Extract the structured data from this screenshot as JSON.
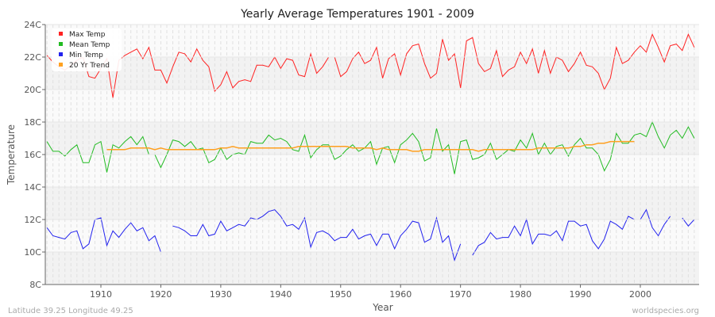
{
  "chart_data": {
    "type": "line",
    "title": "Yearly Average Temperatures 1901 - 2009",
    "xlabel": "Year",
    "ylabel": "Temperature",
    "xlim": [
      1901,
      2009
    ],
    "ylim": [
      8,
      24
    ],
    "yticks": [
      "8C",
      "10C",
      "12C",
      "14C",
      "16C",
      "18C",
      "20C",
      "22C",
      "24C"
    ],
    "ytick_values": [
      8,
      10,
      12,
      14,
      16,
      18,
      20,
      22,
      24
    ],
    "xticks": [
      1910,
      1920,
      1930,
      1940,
      1950,
      1960,
      1970,
      1980,
      1990,
      2000
    ],
    "grid": true,
    "legend_placement": "top-left",
    "x_start": 1901,
    "series": [
      {
        "name": "Max Temp",
        "color": "#ff2222",
        "values": [
          22.1,
          21.7,
          21.4,
          21.2,
          21.5,
          21.8,
          22.0,
          20.8,
          20.7,
          21.3,
          21.9,
          19.5,
          21.8,
          22.1,
          22.3,
          22.5,
          21.9,
          22.6,
          21.2,
          21.2,
          20.4,
          21.4,
          22.3,
          22.2,
          21.7,
          22.5,
          21.8,
          21.4,
          19.9,
          20.3,
          21.1,
          20.1,
          20.5,
          20.6,
          20.5,
          21.5,
          21.5,
          21.4,
          22.0,
          21.3,
          21.9,
          21.8,
          20.9,
          20.8,
          22.2,
          21.0,
          21.4,
          22.0,
          22.0,
          20.8,
          21.1,
          21.9,
          22.3,
          21.6,
          21.8,
          22.6,
          20.7,
          21.9,
          22.2,
          20.9,
          22.2,
          22.7,
          22.8,
          21.6,
          20.7,
          21.0,
          23.1,
          21.8,
          22.2,
          20.1,
          23.0,
          23.2,
          21.6,
          21.1,
          21.3,
          22.4,
          20.8,
          21.2,
          21.4,
          22.3,
          21.6,
          22.5,
          21.0,
          22.4,
          21.0,
          22.0,
          21.8,
          21.1,
          21.6,
          22.3,
          21.5,
          21.4,
          21.0,
          20.0,
          20.7,
          22.6,
          21.6,
          21.8,
          22.3,
          22.7,
          22.3,
          23.4,
          22.6,
          21.7,
          22.7,
          22.8,
          22.4,
          23.4,
          22.6
        ]
      },
      {
        "name": "Mean Temp",
        "color": "#22bb22",
        "values": [
          16.8,
          16.2,
          16.2,
          15.9,
          16.3,
          16.6,
          15.5,
          15.5,
          16.6,
          16.8,
          14.9,
          16.6,
          16.4,
          16.8,
          17.1,
          16.6,
          17.1,
          16.0,
          16.0,
          15.2,
          16.0,
          16.9,
          16.8,
          16.5,
          16.8,
          16.3,
          16.4,
          15.5,
          15.7,
          16.4,
          15.7,
          16.0,
          16.1,
          16.0,
          16.8,
          16.7,
          16.7,
          17.2,
          16.9,
          17.0,
          16.8,
          16.3,
          16.2,
          17.2,
          15.8,
          16.3,
          16.6,
          16.6,
          15.7,
          15.9,
          16.3,
          16.6,
          16.2,
          16.4,
          16.8,
          15.4,
          16.4,
          16.5,
          15.5,
          16.6,
          16.9,
          17.3,
          16.8,
          15.6,
          15.8,
          17.6,
          16.2,
          16.6,
          14.8,
          16.8,
          16.9,
          15.7,
          15.8,
          16.0,
          16.7,
          15.7,
          16.0,
          16.3,
          16.2,
          16.9,
          16.4,
          17.3,
          16.0,
          16.7,
          16.0,
          16.5,
          16.6,
          15.9,
          16.6,
          17.0,
          16.4,
          16.4,
          16.0,
          15.0,
          15.7,
          17.3,
          16.7,
          16.7,
          17.2,
          17.3,
          17.1,
          18.0,
          17.1,
          16.4,
          17.2,
          17.5,
          17.0,
          17.7,
          17.0
        ]
      },
      {
        "name": "Min Temp",
        "color": "#2222ee",
        "values": [
          11.5,
          11.0,
          10.9,
          10.8,
          11.2,
          11.3,
          10.2,
          10.5,
          12.0,
          12.1,
          10.4,
          11.3,
          10.9,
          11.4,
          11.8,
          11.3,
          11.5,
          10.7,
          11.0,
          10.0,
          null,
          11.6,
          11.5,
          11.3,
          11.0,
          11.0,
          11.7,
          11.0,
          11.1,
          11.9,
          11.3,
          11.5,
          11.7,
          11.6,
          12.1,
          12.0,
          12.2,
          12.5,
          12.6,
          12.2,
          11.6,
          11.7,
          11.4,
          12.1,
          10.3,
          11.2,
          11.3,
          11.1,
          10.7,
          10.9,
          10.9,
          11.4,
          10.8,
          11.0,
          11.1,
          10.4,
          11.1,
          11.1,
          10.2,
          11.0,
          11.4,
          11.9,
          11.8,
          10.6,
          10.8,
          12.1,
          10.6,
          11.0,
          9.5,
          10.5,
          null,
          9.8,
          10.4,
          10.6,
          11.2,
          10.8,
          10.9,
          10.9,
          11.6,
          11.0,
          12.0,
          10.5,
          11.1,
          11.1,
          11.0,
          11.3,
          10.7,
          11.9,
          11.9,
          11.6,
          11.7,
          10.7,
          10.2,
          10.8,
          11.9,
          11.7,
          11.4,
          12.2,
          12.0,
          12.0,
          12.6,
          11.5,
          11.0,
          11.7,
          12.2,
          null,
          12.1,
          11.6,
          12.0
        ]
      },
      {
        "name": "20 Yr Trend",
        "color": "#ffa020",
        "x_start": 1911,
        "values": [
          16.3,
          16.3,
          16.3,
          16.3,
          16.4,
          16.4,
          16.4,
          16.4,
          16.3,
          16.4,
          16.3,
          16.3,
          16.3,
          16.3,
          16.3,
          16.3,
          16.3,
          16.3,
          16.3,
          16.4,
          16.4,
          16.5,
          16.4,
          16.4,
          16.4,
          16.4,
          16.4,
          16.4,
          16.4,
          16.4,
          16.4,
          16.4,
          16.5,
          16.5,
          16.5,
          16.5,
          16.5,
          16.5,
          16.5,
          16.5,
          16.5,
          16.4,
          16.4,
          16.4,
          16.4,
          16.3,
          16.4,
          16.3,
          16.3,
          16.3,
          16.3,
          16.2,
          16.2,
          16.3,
          16.3,
          16.3,
          16.3,
          16.3,
          16.3,
          16.3,
          16.3,
          16.3,
          16.2,
          16.3,
          16.3,
          16.3,
          16.3,
          16.3,
          16.3,
          16.3,
          16.3,
          16.3,
          16.4,
          16.4,
          16.4,
          16.4,
          16.4,
          16.4,
          16.5,
          16.5,
          16.6,
          16.6,
          16.7,
          16.7,
          16.8,
          16.8,
          16.8,
          16.8,
          16.8
        ]
      }
    ]
  },
  "footer": {
    "location": "Latitude 39.25 Longitude 49.25",
    "site": "worldspecies.org"
  }
}
